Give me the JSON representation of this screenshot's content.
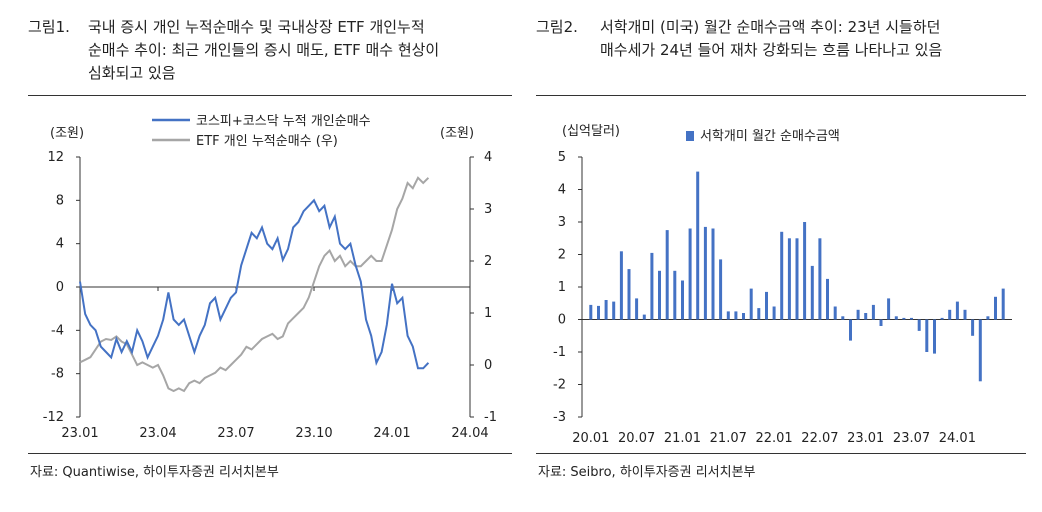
{
  "left": {
    "title_prefix": "그림1.",
    "title_lines": [
      "국내 증시 개인 누적순매수 및 국내상장 ETF 개인누적",
      "순매수 추이: 최근 개인들의 증시 매도, ETF 매수 현상이",
      "심화되고 있음"
    ],
    "source": "자료: Quantiwise, 하이투자증권 리서치본부"
  },
  "right": {
    "title_prefix": "그림2.",
    "title_lines": [
      "서학개미 (미국) 월간 순매수금액 추이: 23년 시들하던",
      "매수세가 24년 들어 재차 강화되는 흐름 나타나고 있음"
    ],
    "source": "자료: Seibro, 하이투자증권 리서치본부"
  },
  "chart_data": [
    {
      "type": "line",
      "left_unit": "(조원)",
      "right_unit": "(조원)",
      "ylim_left": [
        -12,
        12
      ],
      "yticks_left": [
        "12",
        "8",
        "4",
        "0",
        "-4",
        "-8",
        "-12"
      ],
      "ylim_right": [
        -1,
        4
      ],
      "yticks_right": [
        "4",
        "3",
        "2",
        "1",
        "0",
        "-1"
      ],
      "xtick_labels": [
        "23.01",
        "23.04",
        "23.07",
        "23.10",
        "24.01",
        "24.04"
      ],
      "xlim_months": [
        0,
        15
      ],
      "grid": false,
      "legend_position": "top",
      "series": [
        {
          "name": "코스피+코스닥 누적 개인순매수",
          "axis": "left",
          "color": "#4472c4",
          "x": [
            0,
            0.2,
            0.4,
            0.6,
            0.8,
            1.0,
            1.2,
            1.4,
            1.6,
            1.8,
            2.0,
            2.2,
            2.4,
            2.6,
            2.8,
            3.0,
            3.2,
            3.4,
            3.6,
            3.8,
            4.0,
            4.2,
            4.4,
            4.6,
            4.8,
            5.0,
            5.2,
            5.4,
            5.6,
            5.8,
            6.0,
            6.2,
            6.4,
            6.6,
            6.8,
            7.0,
            7.2,
            7.4,
            7.6,
            7.8,
            8.0,
            8.2,
            8.4,
            8.6,
            8.8,
            9.0,
            9.2,
            9.4,
            9.6,
            9.8,
            10.0,
            10.2,
            10.4,
            10.6,
            10.8,
            11.0,
            11.2,
            11.4,
            11.6,
            11.8,
            12.0,
            12.2,
            12.4,
            12.6,
            12.8,
            13.0,
            13.2,
            13.4
          ],
          "values": [
            0.5,
            -2.5,
            -3.5,
            -4,
            -5.5,
            -6,
            -6.5,
            -4.8,
            -6.0,
            -5.0,
            -6.0,
            -4.0,
            -5.0,
            -6.5,
            -5.5,
            -4.5,
            -3.0,
            -0.5,
            -3.0,
            -3.5,
            -3.0,
            -4.5,
            -6.0,
            -4.5,
            -3.5,
            -1.5,
            -1.0,
            -3.0,
            -2.0,
            -1.0,
            -0.5,
            2.0,
            3.5,
            5.0,
            4.5,
            5.5,
            4.0,
            3.5,
            4.5,
            2.5,
            3.5,
            5.5,
            6.0,
            7.0,
            7.5,
            8.0,
            7.0,
            7.5,
            5.5,
            6.5,
            4.0,
            3.5,
            4.0,
            2.0,
            0.5,
            -3.0,
            -4.5,
            -7.0,
            -6.0,
            -3.5,
            0.3,
            -1.5,
            -1.0,
            -4.5,
            -5.5,
            -7.5,
            -7.5,
            -7.0
          ]
        },
        {
          "name": "ETF 개인 누적순매수 (우)",
          "axis": "right",
          "color": "#a6a6a6",
          "x": [
            0,
            0.2,
            0.4,
            0.6,
            0.8,
            1.0,
            1.2,
            1.4,
            1.6,
            1.8,
            2.0,
            2.2,
            2.4,
            2.6,
            2.8,
            3.0,
            3.2,
            3.4,
            3.6,
            3.8,
            4.0,
            4.2,
            4.4,
            4.6,
            4.8,
            5.0,
            5.2,
            5.4,
            5.6,
            5.8,
            6.0,
            6.2,
            6.4,
            6.6,
            6.8,
            7.0,
            7.2,
            7.4,
            7.6,
            7.8,
            8.0,
            8.2,
            8.4,
            8.6,
            8.8,
            9.0,
            9.2,
            9.4,
            9.6,
            9.8,
            10.0,
            10.2,
            10.4,
            10.6,
            10.8,
            11.0,
            11.2,
            11.4,
            11.6,
            11.8,
            12.0,
            12.2,
            12.4,
            12.6,
            12.8,
            13.0,
            13.2,
            13.4
          ],
          "values": [
            0.05,
            0.1,
            0.15,
            0.3,
            0.45,
            0.5,
            0.48,
            0.55,
            0.45,
            0.4,
            0.2,
            0.0,
            0.05,
            0.0,
            -0.05,
            0.0,
            -0.2,
            -0.45,
            -0.5,
            -0.45,
            -0.5,
            -0.35,
            -0.3,
            -0.35,
            -0.25,
            -0.2,
            -0.15,
            -0.05,
            -0.1,
            0.0,
            0.1,
            0.2,
            0.35,
            0.3,
            0.4,
            0.5,
            0.55,
            0.6,
            0.5,
            0.55,
            0.8,
            0.9,
            1.0,
            1.1,
            1.3,
            1.6,
            1.9,
            2.1,
            2.2,
            2.0,
            2.1,
            1.9,
            2.0,
            1.9,
            1.9,
            2.0,
            2.1,
            2.0,
            2.0,
            2.3,
            2.6,
            3.0,
            3.2,
            3.5,
            3.4,
            3.6,
            3.5,
            3.6
          ]
        }
      ]
    },
    {
      "type": "bar",
      "unit_label": "(십억달러)",
      "ylim": [
        -3,
        5
      ],
      "yticks": [
        "5",
        "4",
        "3",
        "2",
        "1",
        "0",
        "-1",
        "-2",
        "-3"
      ],
      "xtick_labels": [
        "20.01",
        "20.07",
        "21.01",
        "21.07",
        "22.01",
        "22.07",
        "23.01",
        "23.07",
        "24.01"
      ],
      "grid": false,
      "legend_position": "top-left",
      "series": [
        {
          "name": "서학개미 월간 순매수금액",
          "color": "#4472c4",
          "values": [
            0.45,
            0.42,
            0.6,
            0.55,
            2.1,
            1.55,
            0.65,
            0.15,
            2.05,
            1.5,
            2.75,
            1.5,
            1.2,
            2.8,
            4.55,
            2.85,
            2.8,
            1.85,
            0.25,
            0.25,
            0.2,
            0.95,
            0.35,
            0.85,
            0.4,
            2.7,
            2.5,
            2.5,
            3.0,
            1.65,
            2.5,
            1.25,
            0.4,
            0.1,
            -0.65,
            0.3,
            0.2,
            0.45,
            -0.2,
            0.65,
            0.1,
            0.05,
            0.05,
            -0.35,
            -1.0,
            -1.05,
            0.05,
            0.3,
            0.55,
            0.3,
            -0.5,
            -1.9,
            0.1,
            0.7,
            0.95
          ]
        }
      ]
    }
  ]
}
